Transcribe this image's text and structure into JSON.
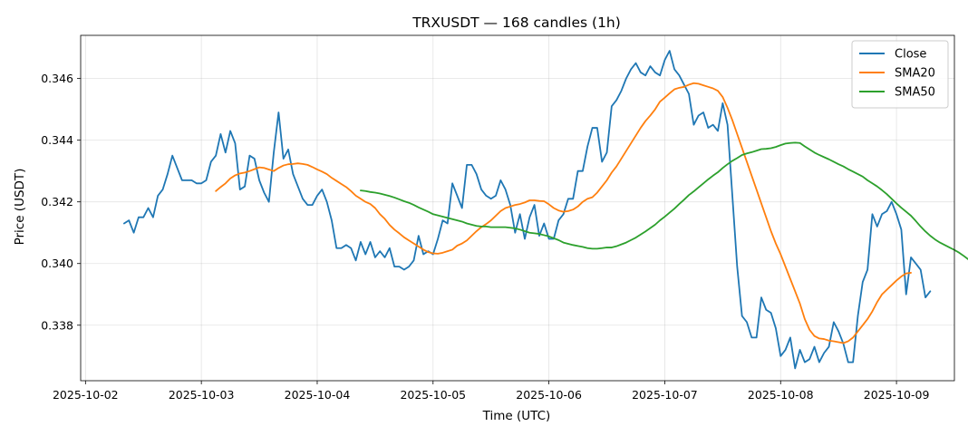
{
  "chart_data": {
    "type": "line",
    "title": "TRXUSDT — 168 candles (1h)",
    "xlabel": "Time (UTC)",
    "ylabel": "Price (USDT)",
    "x_start": "2025-10-02 08:00",
    "x_step_hours": 1,
    "xlim": [
      "2025-10-01 23:00",
      "2025-10-09 12:00"
    ],
    "ylim": [
      0.3362,
      0.3474
    ],
    "x_ticks": [
      "2025-10-02",
      "2025-10-03",
      "2025-10-04",
      "2025-10-05",
      "2025-10-06",
      "2025-10-07",
      "2025-10-08",
      "2025-10-09"
    ],
    "y_ticks": [
      0.338,
      0.34,
      0.342,
      0.344,
      0.346
    ],
    "y_tick_labels": [
      "0.338",
      "0.340",
      "0.342",
      "0.344",
      "0.346"
    ],
    "grid": true,
    "legend_position": "top-right",
    "series": [
      {
        "name": "Close",
        "color": "#1f77b4",
        "start_index": 0,
        "values": [
          0.3413,
          0.3414,
          0.341,
          0.3415,
          0.3415,
          0.3418,
          0.3415,
          0.3422,
          0.3424,
          0.3429,
          0.3435,
          0.3431,
          0.3427,
          0.3427,
          0.3427,
          0.3426,
          0.3426,
          0.3427,
          0.3433,
          0.3435,
          0.3442,
          0.3436,
          0.3443,
          0.3439,
          0.3424,
          0.3425,
          0.3435,
          0.3434,
          0.3427,
          0.3423,
          0.342,
          0.3436,
          0.3449,
          0.3434,
          0.3437,
          0.3429,
          0.3425,
          0.3421,
          0.3419,
          0.3419,
          0.3422,
          0.3424,
          0.342,
          0.3414,
          0.3405,
          0.3405,
          0.3406,
          0.3405,
          0.3401,
          0.3407,
          0.3403,
          0.3407,
          0.3402,
          0.3404,
          0.3402,
          0.3405,
          0.3399,
          0.3399,
          0.3398,
          0.3399,
          0.3401,
          0.3409,
          0.3403,
          0.3404,
          0.3403,
          0.3408,
          0.3414,
          0.3413,
          0.3426,
          0.3422,
          0.3418,
          0.3432,
          0.3432,
          0.3429,
          0.3424,
          0.3422,
          0.3421,
          0.3422,
          0.3427,
          0.3424,
          0.3419,
          0.341,
          0.3416,
          0.3408,
          0.3415,
          0.3419,
          0.3409,
          0.3413,
          0.3408,
          0.3408,
          0.3414,
          0.3416,
          0.3421,
          0.3421,
          0.343,
          0.343,
          0.3438,
          0.3444,
          0.3444,
          0.3433,
          0.3436,
          0.3451,
          0.3453,
          0.3456,
          0.346,
          0.3463,
          0.3465,
          0.3462,
          0.3461,
          0.3464,
          0.3462,
          0.3461,
          0.3466,
          0.3469,
          0.3463,
          0.3461,
          0.3458,
          0.3455,
          0.3445,
          0.3448,
          0.3449,
          0.3444,
          0.3445,
          0.3443,
          0.3452,
          0.3445,
          0.3422,
          0.3399,
          0.3383,
          0.3381,
          0.3376,
          0.3376,
          0.3389,
          0.3385,
          0.3384,
          0.3379,
          0.337,
          0.3372,
          0.3376,
          0.3366,
          0.3372,
          0.3368,
          0.3369,
          0.3373,
          0.3368,
          0.3371,
          0.3373,
          0.3381,
          0.3378,
          0.3374,
          0.3368,
          0.3368,
          0.3383,
          0.3394,
          0.3398,
          0.3416,
          0.3412,
          0.3416,
          0.3417,
          0.342,
          0.3416,
          0.3411,
          0.339,
          0.3402,
          0.34,
          0.3398,
          0.3389,
          0.3391
        ]
      },
      {
        "name": "SMA20",
        "color": "#ff7f0e",
        "start_index": 19,
        "values": [
          0.34235,
          0.34248,
          0.3426,
          0.34276,
          0.34286,
          0.34292,
          0.34295,
          0.343,
          0.34306,
          0.34312,
          0.3431,
          0.34305,
          0.343,
          0.3431,
          0.34318,
          0.34322,
          0.34323,
          0.34325,
          0.34323,
          0.3432,
          0.34313,
          0.34305,
          0.34298,
          0.3429,
          0.34278,
          0.34268,
          0.34258,
          0.34248,
          0.34235,
          0.3422,
          0.3421,
          0.342,
          0.34193,
          0.3418,
          0.3416,
          0.34145,
          0.34125,
          0.3411,
          0.34098,
          0.34085,
          0.34075,
          0.34065,
          0.34055,
          0.34045,
          0.34037,
          0.34033,
          0.34032,
          0.34035,
          0.3404,
          0.34045,
          0.34058,
          0.34065,
          0.34075,
          0.3409,
          0.34105,
          0.34118,
          0.34128,
          0.3414,
          0.34155,
          0.3417,
          0.3418,
          0.34185,
          0.3419,
          0.34193,
          0.34198,
          0.34205,
          0.34205,
          0.34203,
          0.34202,
          0.34192,
          0.3418,
          0.34172,
          0.34168,
          0.3417,
          0.34175,
          0.34185,
          0.342,
          0.3421,
          0.34215,
          0.3423,
          0.3425,
          0.3427,
          0.34295,
          0.34315,
          0.3434,
          0.34365,
          0.3439,
          0.34415,
          0.3444,
          0.34462,
          0.3448,
          0.345,
          0.34525,
          0.34538,
          0.34552,
          0.34565,
          0.3457,
          0.34573,
          0.3458,
          0.34585,
          0.34583,
          0.34578,
          0.34573,
          0.34568,
          0.3456,
          0.3454,
          0.34505,
          0.34465,
          0.3442,
          0.34375,
          0.3433,
          0.34285,
          0.3424,
          0.34195,
          0.3415,
          0.34105,
          0.34065,
          0.3403,
          0.3399,
          0.3395,
          0.3391,
          0.3387,
          0.3382,
          0.33785,
          0.33765,
          0.33757,
          0.33755,
          0.3375,
          0.33748,
          0.33745,
          0.33742,
          0.33748,
          0.3376,
          0.3378,
          0.338,
          0.3382,
          0.33845,
          0.33875,
          0.339,
          0.33915,
          0.3393,
          0.33945,
          0.33958,
          0.33968,
          0.3397
        ]
      },
      {
        "name": "SMA50",
        "color": "#2ca02c",
        "start_index": 49,
        "values": [
          0.34237,
          0.34235,
          0.34232,
          0.3423,
          0.34227,
          0.34223,
          0.34219,
          0.34214,
          0.34208,
          0.34202,
          0.34197,
          0.3419,
          0.34182,
          0.34175,
          0.34168,
          0.3416,
          0.34156,
          0.34152,
          0.34148,
          0.34144,
          0.3414,
          0.34136,
          0.3413,
          0.34126,
          0.34122,
          0.3412,
          0.3412,
          0.34118,
          0.34118,
          0.34118,
          0.34118,
          0.34116,
          0.34114,
          0.3411,
          0.34105,
          0.341,
          0.34098,
          0.34096,
          0.34092,
          0.34088,
          0.34082,
          0.34076,
          0.34068,
          0.34064,
          0.3406,
          0.34057,
          0.34054,
          0.3405,
          0.34048,
          0.34048,
          0.3405,
          0.34052,
          0.34052,
          0.34056,
          0.34062,
          0.34068,
          0.34076,
          0.34084,
          0.34094,
          0.34104,
          0.34115,
          0.34126,
          0.3414,
          0.34152,
          0.34165,
          0.34178,
          0.34193,
          0.34207,
          0.34222,
          0.34234,
          0.34247,
          0.3426,
          0.34273,
          0.34285,
          0.34296,
          0.3431,
          0.34322,
          0.34333,
          0.34342,
          0.34352,
          0.34357,
          0.34361,
          0.34366,
          0.34371,
          0.34372,
          0.34374,
          0.34378,
          0.34384,
          0.34389,
          0.34391,
          0.34392,
          0.34391,
          0.3438,
          0.3437,
          0.3436,
          0.34352,
          0.34345,
          0.34338,
          0.3433,
          0.34322,
          0.34315,
          0.34306,
          0.34298,
          0.3429,
          0.34282,
          0.3427,
          0.3426,
          0.3425,
          0.34238,
          0.34225,
          0.3421,
          0.34195,
          0.34181,
          0.34168,
          0.34155,
          0.34138,
          0.3412,
          0.34104,
          0.3409,
          0.34078,
          0.34068,
          0.3406,
          0.34052,
          0.34044,
          0.34035,
          0.34024,
          0.34012,
          0.34,
          0.33986,
          0.3397
        ]
      }
    ]
  }
}
